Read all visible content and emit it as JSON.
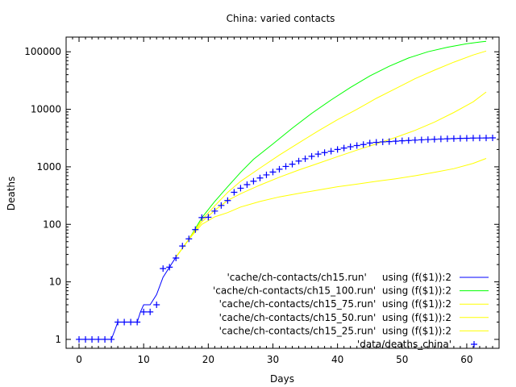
{
  "chart_data": {
    "type": "line",
    "title": "China: varied contacts",
    "xlabel": "Days",
    "ylabel": "Deaths",
    "xlim": [
      -2,
      65
    ],
    "ylim": [
      0.7,
      180000
    ],
    "yscale": "log",
    "grid": false,
    "legend_position": "bottom-right",
    "x_ticks": [
      0,
      10,
      20,
      30,
      40,
      50,
      60
    ],
    "x_tick_labels": [
      "0",
      "10",
      "20",
      "30",
      "40",
      "50",
      "60"
    ],
    "y_ticks": [
      1,
      10,
      100,
      1000,
      10000,
      100000
    ],
    "y_tick_labels": [
      "1",
      "10",
      "100",
      "1000",
      "10000",
      "100000"
    ],
    "series": [
      {
        "name": "'cache/ch-contacts/ch15.run'     using (f($1)):2",
        "color": "#0000ff",
        "style": "line",
        "points": [
          [
            -0.3,
            1
          ],
          [
            5,
            1
          ],
          [
            5.5,
            1.4
          ],
          [
            6,
            2
          ],
          [
            9,
            2
          ],
          [
            9.5,
            3
          ],
          [
            10,
            4
          ],
          [
            11,
            4
          ],
          [
            12,
            6
          ],
          [
            13,
            12
          ],
          [
            14,
            18
          ],
          [
            15,
            27
          ]
        ]
      },
      {
        "name": "'cache/ch-contacts/ch15_100.run'  using (f($1)):2",
        "color": "#00ff00",
        "style": "line",
        "points": [
          [
            15,
            27
          ],
          [
            17,
            55
          ],
          [
            19,
            130
          ],
          [
            21,
            250
          ],
          [
            23,
            450
          ],
          [
            25,
            800
          ],
          [
            27,
            1350
          ],
          [
            30,
            2500
          ],
          [
            33,
            4700
          ],
          [
            36,
            8500
          ],
          [
            39,
            14500
          ],
          [
            42,
            24000
          ],
          [
            45,
            38000
          ],
          [
            48,
            56000
          ],
          [
            51,
            78000
          ],
          [
            54,
            100000
          ],
          [
            57,
            120000
          ],
          [
            60,
            138000
          ],
          [
            62,
            148000
          ],
          [
            63,
            152000
          ]
        ]
      },
      {
        "name": "'cache/ch-contacts/ch15_75.run'  using (f($1)):2",
        "color": "#ffff00",
        "style": "line",
        "points": [
          [
            15,
            27
          ],
          [
            17,
            55
          ],
          [
            19,
            120
          ],
          [
            21,
            210
          ],
          [
            23,
            360
          ],
          [
            25,
            560
          ],
          [
            28,
            950
          ],
          [
            31,
            1600
          ],
          [
            34,
            2600
          ],
          [
            37,
            4200
          ],
          [
            40,
            6600
          ],
          [
            43,
            10000
          ],
          [
            46,
            15500
          ],
          [
            49,
            23000
          ],
          [
            52,
            34000
          ],
          [
            55,
            48000
          ],
          [
            58,
            66000
          ],
          [
            61,
            88000
          ],
          [
            63,
            103000
          ]
        ]
      },
      {
        "name": "'cache/ch-contacts/ch15_50.run'  using (f($1)):2",
        "color": "#ffff00",
        "style": "line",
        "points": [
          [
            15,
            27
          ],
          [
            17,
            55
          ],
          [
            19,
            110
          ],
          [
            21,
            175
          ],
          [
            23,
            260
          ],
          [
            25,
            340
          ],
          [
            28,
            480
          ],
          [
            31,
            660
          ],
          [
            34,
            880
          ],
          [
            37,
            1150
          ],
          [
            40,
            1500
          ],
          [
            43,
            1950
          ],
          [
            46,
            2500
          ],
          [
            49,
            3250
          ],
          [
            52,
            4300
          ],
          [
            55,
            6000
          ],
          [
            58,
            8800
          ],
          [
            61,
            13500
          ],
          [
            63,
            20000
          ]
        ]
      },
      {
        "name": "'cache/ch-contacts/ch15_25.run'  using (f($1)):2",
        "color": "#ffff00",
        "style": "line",
        "points": [
          [
            15,
            27
          ],
          [
            17,
            55
          ],
          [
            19,
            100
          ],
          [
            21,
            135
          ],
          [
            23,
            160
          ],
          [
            25,
            200
          ],
          [
            28,
            250
          ],
          [
            31,
            300
          ],
          [
            34,
            345
          ],
          [
            37,
            395
          ],
          [
            40,
            450
          ],
          [
            43,
            500
          ],
          [
            46,
            560
          ],
          [
            49,
            620
          ],
          [
            52,
            700
          ],
          [
            55,
            800
          ],
          [
            58,
            930
          ],
          [
            61,
            1150
          ],
          [
            63,
            1400
          ]
        ]
      },
      {
        "name": "'data/deaths_china'",
        "color": "#0000ff",
        "style": "points",
        "marker": "+",
        "points": [
          [
            0,
            1
          ],
          [
            1,
            1
          ],
          [
            2,
            1
          ],
          [
            3,
            1
          ],
          [
            4,
            1
          ],
          [
            5,
            1
          ],
          [
            6,
            2
          ],
          [
            7,
            2
          ],
          [
            8,
            2
          ],
          [
            9,
            2
          ],
          [
            10,
            3
          ],
          [
            11,
            3
          ],
          [
            12,
            4
          ],
          [
            13,
            17
          ],
          [
            14,
            18
          ],
          [
            15,
            26
          ],
          [
            16,
            42
          ],
          [
            17,
            56
          ],
          [
            18,
            81
          ],
          [
            19,
            131
          ],
          [
            20,
            133
          ],
          [
            21,
            170
          ],
          [
            22,
            213
          ],
          [
            23,
            259
          ],
          [
            24,
            361
          ],
          [
            25,
            425
          ],
          [
            26,
            490
          ],
          [
            27,
            562
          ],
          [
            28,
            639
          ],
          [
            29,
            724
          ],
          [
            30,
            811
          ],
          [
            31,
            908
          ],
          [
            32,
            1016
          ],
          [
            33,
            1113
          ],
          [
            34,
            1259
          ],
          [
            35,
            1380
          ],
          [
            36,
            1523
          ],
          [
            37,
            1665
          ],
          [
            38,
            1770
          ],
          [
            39,
            1868
          ],
          [
            40,
            2004
          ],
          [
            41,
            2118
          ],
          [
            42,
            2236
          ],
          [
            43,
            2345
          ],
          [
            44,
            2442
          ],
          [
            45,
            2592
          ],
          [
            46,
            2663
          ],
          [
            47,
            2715
          ],
          [
            48,
            2744
          ],
          [
            49,
            2788
          ],
          [
            50,
            2835
          ],
          [
            51,
            2870
          ],
          [
            52,
            2912
          ],
          [
            53,
            2943
          ],
          [
            54,
            2981
          ],
          [
            55,
            3012
          ],
          [
            56,
            3042
          ],
          [
            57,
            3070
          ],
          [
            58,
            3097
          ],
          [
            59,
            3119
          ],
          [
            60,
            3136
          ],
          [
            61,
            3158
          ],
          [
            62,
            3169
          ],
          [
            63,
            3176
          ],
          [
            64,
            3189
          ]
        ]
      }
    ]
  }
}
